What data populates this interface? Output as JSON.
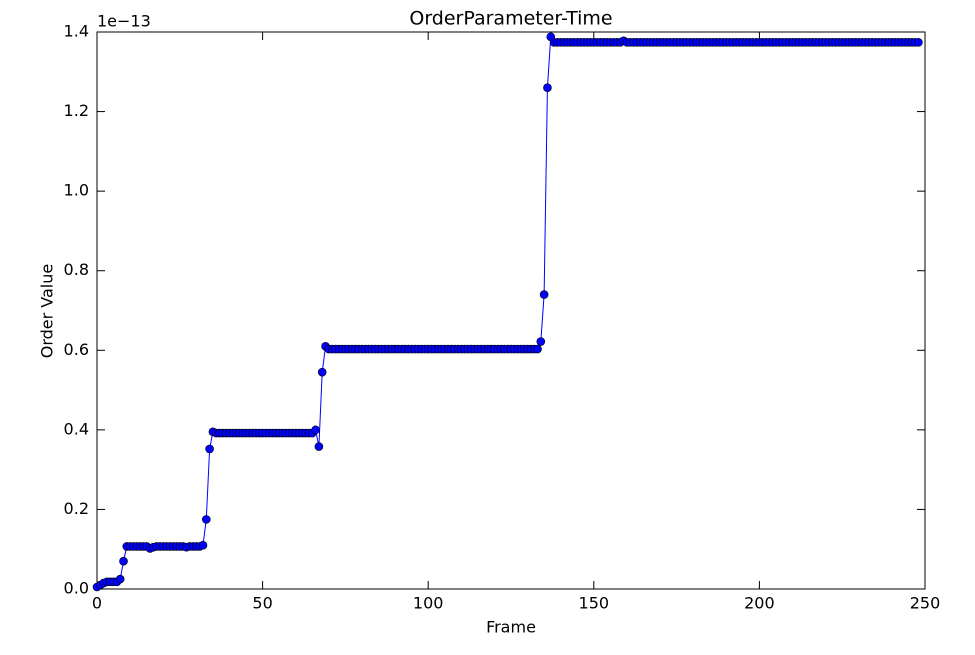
{
  "chart_data": {
    "type": "line",
    "title": "OrderParameter-Time",
    "xlabel": "Frame",
    "ylabel": "Order Value",
    "offset_text": "1e−13",
    "color": "#0000ff",
    "marker_edge_color": "#000000",
    "xlim": [
      0,
      250
    ],
    "xticks": [
      0,
      50,
      100,
      150,
      200,
      250
    ],
    "ylim": [
      0,
      1.4
    ],
    "yticks": [
      {
        "value": 0,
        "label": "0.0"
      },
      0.2,
      0.4,
      0.6,
      0.8,
      {
        "value": 1,
        "label": "1.0"
      },
      1.2,
      1.4
    ],
    "x": [
      0,
      1,
      2,
      3,
      4,
      5,
      6,
      7,
      8,
      9,
      10,
      11,
      12,
      13,
      14,
      15,
      16,
      17,
      18,
      19,
      20,
      21,
      22,
      23,
      24,
      25,
      26,
      27,
      28,
      29,
      30,
      31,
      32,
      33,
      34,
      35,
      36,
      37,
      38,
      39,
      40,
      41,
      42,
      43,
      44,
      45,
      46,
      47,
      48,
      49,
      50,
      51,
      52,
      53,
      54,
      55,
      56,
      57,
      58,
      59,
      60,
      61,
      62,
      63,
      64,
      65,
      66,
      67,
      68,
      69,
      70,
      71,
      72,
      73,
      74,
      75,
      76,
      77,
      78,
      79,
      80,
      81,
      82,
      83,
      84,
      85,
      86,
      87,
      88,
      89,
      90,
      91,
      92,
      93,
      94,
      95,
      96,
      97,
      98,
      99,
      100,
      101,
      102,
      103,
      104,
      105,
      106,
      107,
      108,
      109,
      110,
      111,
      112,
      113,
      114,
      115,
      116,
      117,
      118,
      119,
      120,
      121,
      122,
      123,
      124,
      125,
      126,
      127,
      128,
      129,
      130,
      131,
      132,
      133,
      134,
      135,
      136,
      137,
      138,
      139,
      140,
      141,
      142,
      143,
      144,
      145,
      146,
      147,
      148,
      149,
      150,
      151,
      152,
      153,
      154,
      155,
      156,
      157,
      158,
      159,
      160,
      161,
      162,
      163,
      164,
      165,
      166,
      167,
      168,
      169,
      170,
      171,
      172,
      173,
      174,
      175,
      176,
      177,
      178,
      179,
      180,
      181,
      182,
      183,
      184,
      185,
      186,
      187,
      188,
      189,
      190,
      191,
      192,
      193,
      194,
      195,
      196,
      197,
      198,
      199,
      200,
      201,
      202,
      203,
      204,
      205,
      206,
      207,
      208,
      209,
      210,
      211,
      212,
      213,
      214,
      215,
      216,
      217,
      218,
      219,
      220,
      221,
      222,
      223,
      224,
      225,
      226,
      227,
      228,
      229,
      230,
      231,
      232,
      233,
      234,
      235,
      236,
      237,
      238,
      239,
      240,
      241,
      242,
      243,
      244,
      245,
      246,
      247,
      248
    ],
    "values": [
      0.005,
      0.01,
      0.015,
      0.018,
      0.018,
      0.018,
      0.018,
      0.025,
      0.07,
      0.107,
      0.107,
      0.107,
      0.107,
      0.107,
      0.107,
      0.107,
      0.102,
      0.105,
      0.107,
      0.107,
      0.107,
      0.107,
      0.107,
      0.107,
      0.107,
      0.107,
      0.107,
      0.105,
      0.107,
      0.107,
      0.107,
      0.107,
      0.11,
      0.175,
      0.352,
      0.395,
      0.392,
      0.392,
      0.392,
      0.392,
      0.392,
      0.392,
      0.392,
      0.392,
      0.392,
      0.392,
      0.392,
      0.392,
      0.392,
      0.392,
      0.392,
      0.392,
      0.392,
      0.392,
      0.392,
      0.392,
      0.392,
      0.392,
      0.392,
      0.392,
      0.392,
      0.392,
      0.392,
      0.392,
      0.392,
      0.392,
      0.4,
      0.358,
      0.545,
      0.61,
      0.603,
      0.603,
      0.603,
      0.603,
      0.603,
      0.603,
      0.603,
      0.603,
      0.603,
      0.603,
      0.603,
      0.603,
      0.603,
      0.603,
      0.603,
      0.603,
      0.603,
      0.603,
      0.603,
      0.603,
      0.603,
      0.603,
      0.603,
      0.603,
      0.603,
      0.603,
      0.603,
      0.603,
      0.603,
      0.603,
      0.603,
      0.603,
      0.603,
      0.603,
      0.603,
      0.603,
      0.603,
      0.603,
      0.603,
      0.603,
      0.603,
      0.603,
      0.603,
      0.603,
      0.603,
      0.603,
      0.603,
      0.603,
      0.603,
      0.603,
      0.603,
      0.603,
      0.603,
      0.603,
      0.603,
      0.603,
      0.603,
      0.603,
      0.603,
      0.603,
      0.603,
      0.603,
      0.603,
      0.603,
      0.622,
      0.74,
      1.26,
      1.388,
      1.374,
      1.374,
      1.374,
      1.374,
      1.374,
      1.374,
      1.374,
      1.374,
      1.374,
      1.374,
      1.374,
      1.374,
      1.374,
      1.374,
      1.374,
      1.374,
      1.374,
      1.374,
      1.374,
      1.374,
      1.374,
      1.378,
      1.374,
      1.374,
      1.374,
      1.374,
      1.374,
      1.374,
      1.374,
      1.374,
      1.374,
      1.374,
      1.374,
      1.374,
      1.374,
      1.374,
      1.374,
      1.374,
      1.374,
      1.374,
      1.374,
      1.374,
      1.374,
      1.374,
      1.374,
      1.374,
      1.374,
      1.374,
      1.374,
      1.374,
      1.374,
      1.374,
      1.374,
      1.374,
      1.374,
      1.374,
      1.374,
      1.374,
      1.374,
      1.374,
      1.374,
      1.374,
      1.374,
      1.374,
      1.374,
      1.374,
      1.374,
      1.374,
      1.374,
      1.374,
      1.374,
      1.374,
      1.374,
      1.374,
      1.374,
      1.374,
      1.374,
      1.374,
      1.374,
      1.374,
      1.374,
      1.374,
      1.374,
      1.374,
      1.374,
      1.374,
      1.374,
      1.374,
      1.374,
      1.374,
      1.374,
      1.374,
      1.374,
      1.374,
      1.374,
      1.374,
      1.374,
      1.374,
      1.374,
      1.374,
      1.374,
      1.374,
      1.374,
      1.374,
      1.374,
      1.374,
      1.374,
      1.374,
      1.374,
      1.374,
      1.374
    ]
  }
}
